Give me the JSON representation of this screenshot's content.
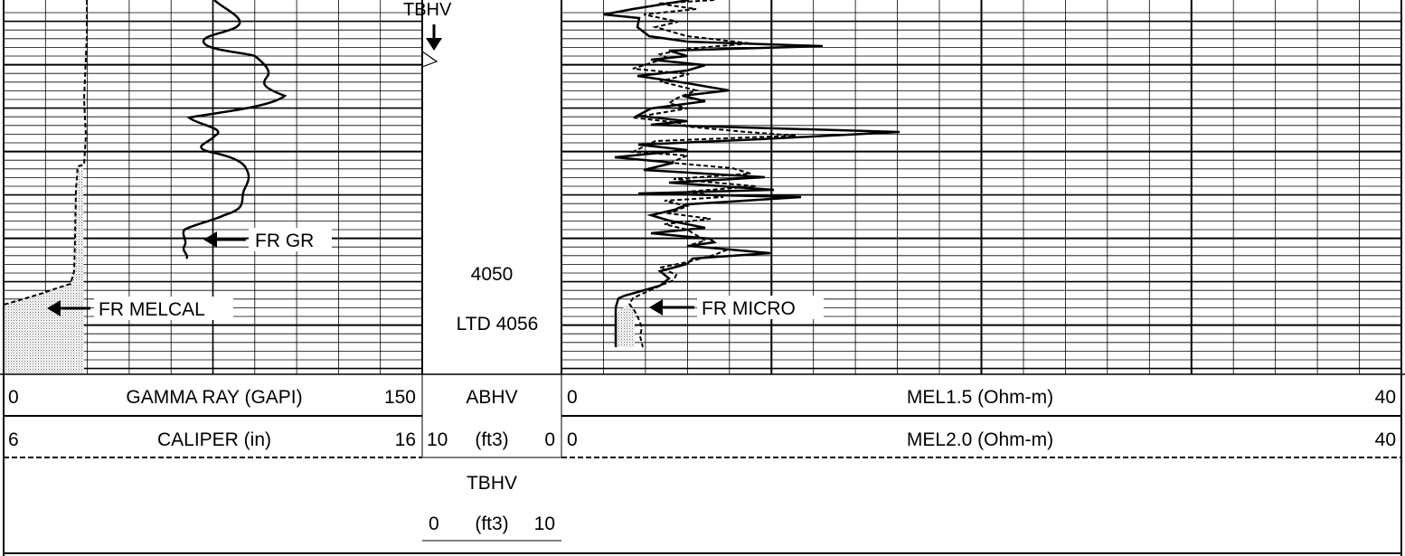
{
  "chart_data": {
    "type": "line",
    "title": "",
    "depth_labels": {
      "depth": "4050",
      "ltd": "LTD 4056"
    },
    "left_track": {
      "header_rows": [
        {
          "left": "0",
          "center": "GAMMA RAY (GAPI)",
          "right": "150"
        },
        {
          "left": "6",
          "center": "CALIPER (in)",
          "right": "16"
        }
      ],
      "series": [
        {
          "name": "FR GR",
          "curve": "GAMMA RAY (GAPI)",
          "x_range": [
            0,
            150
          ],
          "style": "solid"
        },
        {
          "name": "FR MELCAL",
          "curve": "CALIPER (in)",
          "x_range": [
            6,
            16
          ],
          "style": "dashed",
          "fill": "stippled"
        }
      ]
    },
    "depth_track": {
      "header_rows": [
        {
          "center": "ABHV"
        },
        {
          "left": "10",
          "center": "(ft3)",
          "right": "0"
        },
        {
          "center": "TBHV"
        },
        {
          "left": "0",
          "center": "(ft3)",
          "right": "10"
        }
      ],
      "marker": "TBHV"
    },
    "right_track": {
      "header_rows": [
        {
          "left": "0",
          "center": "MEL1.5 (Ohm-m)",
          "right": "40"
        },
        {
          "left": "0",
          "center": "MEL2.0 (Ohm-m)",
          "right": "40"
        }
      ],
      "series": [
        {
          "name": "FR MICRO",
          "curve": "MEL1.5 (Ohm-m)",
          "x_range": [
            0,
            40
          ],
          "style": "solid"
        },
        {
          "name": "FR MICRO",
          "curve": "MEL2.0 (Ohm-m)",
          "x_range": [
            0,
            40
          ],
          "style": "dashed",
          "fill": "stippled"
        }
      ]
    }
  }
}
